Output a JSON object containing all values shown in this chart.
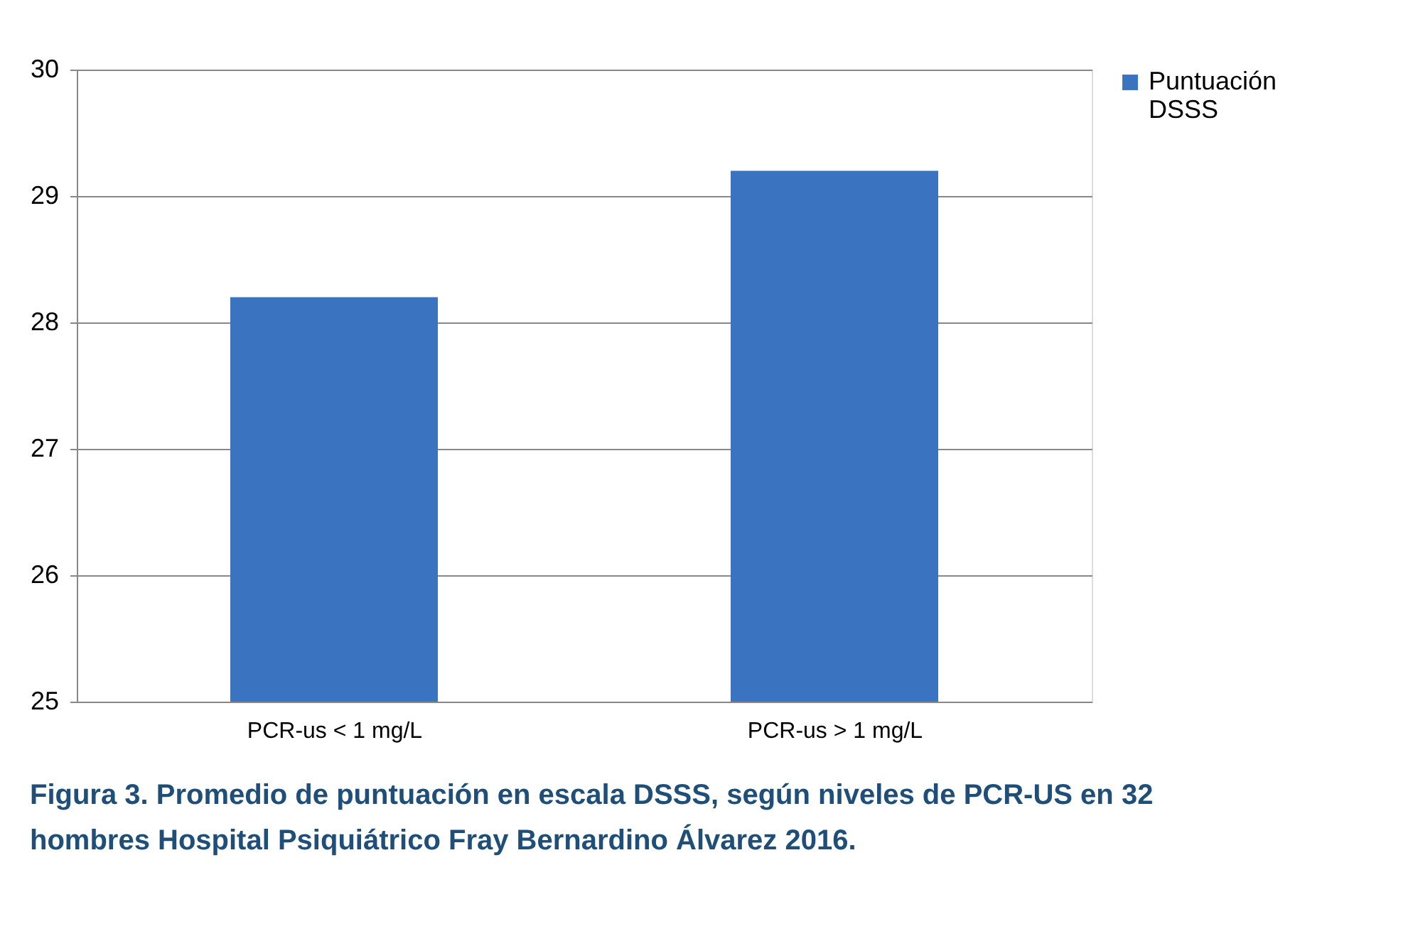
{
  "chart_data": {
    "type": "bar",
    "categories": [
      "PCR-us < 1 mg/L",
      "PCR-us > 1 mg/L"
    ],
    "series": [
      {
        "name": "Puntuación DSSS",
        "color": "#3a73bf",
        "values": [
          28.2,
          29.2
        ]
      }
    ],
    "ylim": [
      25,
      30
    ],
    "yticks": [
      25,
      26,
      27,
      28,
      29,
      30
    ],
    "grid": "y",
    "legend": "right",
    "annotations": [
      "Figura 3. Promedio de puntuación en escala DSSS, según niveles de PCR-US en 32 hombres Hospital Psiquiátrico Fray Bernardino Álvarez 2016."
    ]
  }
}
